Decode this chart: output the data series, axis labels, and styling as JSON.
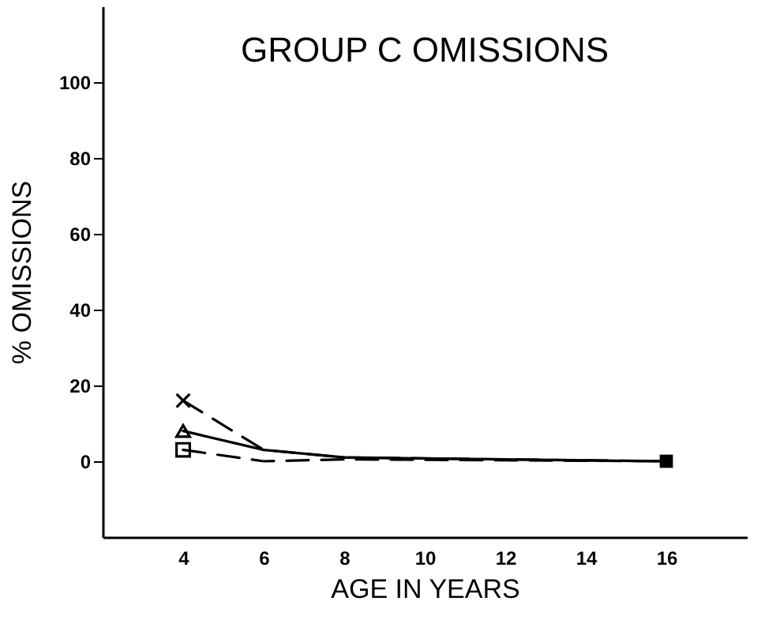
{
  "chart_data": {
    "type": "line",
    "title": "GROUP C OMISSIONS",
    "xlabel": "AGE IN YEARS",
    "ylabel": "% OMISSIONS",
    "xlim": [
      2,
      18
    ],
    "xticks": [
      4,
      6,
      8,
      10,
      12,
      14,
      16
    ],
    "ylim": [
      -20,
      120
    ],
    "yticks": [
      0,
      20,
      40,
      60,
      80,
      100
    ],
    "grid": false,
    "series": [
      {
        "color": "#000000",
        "line_style": "dashed",
        "marker": "none",
        "x": [
          4,
          6,
          8,
          16
        ],
        "values": [
          16,
          3,
          1,
          0
        ]
      },
      {
        "color": "#000000",
        "line_style": "solid",
        "marker": "none",
        "x": [
          4,
          6,
          8,
          16
        ],
        "values": [
          8,
          3,
          1,
          0
        ]
      },
      {
        "color": "#000000",
        "line_style": "dashed",
        "marker": "none",
        "x": [
          4,
          6,
          8,
          16
        ],
        "values": [
          3,
          0,
          0.5,
          0
        ]
      },
      {
        "color": "#000000",
        "marker": "cross",
        "x": [
          4
        ],
        "values": [
          16
        ]
      },
      {
        "color": "#000000",
        "marker": "triangle",
        "x": [
          4
        ],
        "values": [
          8
        ]
      },
      {
        "color": "#000000",
        "marker": "square",
        "x": [
          4
        ],
        "values": [
          3
        ]
      },
      {
        "type": "scatter",
        "color": "#000000",
        "marker": "square",
        "x": [
          16
        ],
        "values": [
          0
        ]
      }
    ]
  }
}
